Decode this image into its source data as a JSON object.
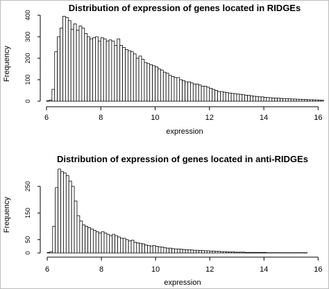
{
  "chart_data": [
    {
      "type": "bar",
      "title": "Distribution of expression of genes located in RIDGEs",
      "xlabel": "expression",
      "ylabel": "Frequency",
      "xlim": [
        6,
        16.4
      ],
      "ylim": [
        0,
        400
      ],
      "xticks": [
        "6",
        "8",
        "10",
        "12",
        "14",
        "16"
      ],
      "yticks": [
        "0",
        "100",
        "200",
        "300",
        "400"
      ],
      "bin_start": 6.0,
      "bin_width": 0.1,
      "values": [
        2,
        5,
        55,
        230,
        300,
        340,
        395,
        390,
        375,
        335,
        360,
        330,
        350,
        340,
        315,
        300,
        290,
        295,
        300,
        280,
        295,
        290,
        280,
        285,
        280,
        260,
        290,
        260,
        250,
        240,
        235,
        230,
        220,
        200,
        210,
        195,
        180,
        175,
        170,
        165,
        160,
        150,
        145,
        135,
        130,
        120,
        115,
        110,
        110,
        100,
        95,
        90,
        90,
        85,
        80,
        80,
        75,
        70,
        70,
        65,
        60,
        55,
        50,
        45,
        45,
        42,
        40,
        38,
        36,
        35,
        33,
        32,
        30,
        28,
        27,
        25,
        23,
        22,
        20,
        20,
        18,
        17,
        16,
        15,
        14,
        14,
        13,
        12,
        12,
        11,
        10,
        10,
        9,
        9,
        8,
        8,
        7,
        7,
        6,
        6,
        5,
        5
      ]
    },
    {
      "type": "bar",
      "title": "Distribution of expression of genes located in anti-RIDGEs",
      "xlabel": "expression",
      "ylabel": "Frequency",
      "xlim": [
        6,
        16.4
      ],
      "ylim": [
        0,
        320
      ],
      "xticks": [
        "6",
        "8",
        "10",
        "12",
        "14",
        "16"
      ],
      "yticks": [
        "0",
        "50",
        "150",
        "250"
      ],
      "ytick_values": [
        0,
        50,
        150,
        250
      ],
      "bin_start": 6.0,
      "bin_width": 0.1,
      "values": [
        2,
        5,
        100,
        245,
        315,
        305,
        300,
        290,
        270,
        250,
        195,
        140,
        120,
        105,
        100,
        95,
        90,
        85,
        80,
        75,
        80,
        75,
        70,
        65,
        70,
        65,
        60,
        55,
        55,
        50,
        45,
        48,
        40,
        38,
        36,
        34,
        30,
        28,
        26,
        28,
        25,
        23,
        22,
        20,
        18,
        18,
        16,
        15,
        15,
        14,
        13,
        12,
        12,
        11,
        10,
        10,
        9,
        9,
        8,
        8,
        7,
        7,
        6,
        6,
        5,
        5,
        4,
        4,
        4,
        3,
        3,
        3,
        3,
        2,
        2,
        2,
        2,
        2,
        2,
        2,
        2,
        1,
        1,
        1,
        1,
        1,
        1,
        1,
        1,
        1,
        1,
        1,
        1,
        1,
        1,
        1
      ]
    }
  ]
}
